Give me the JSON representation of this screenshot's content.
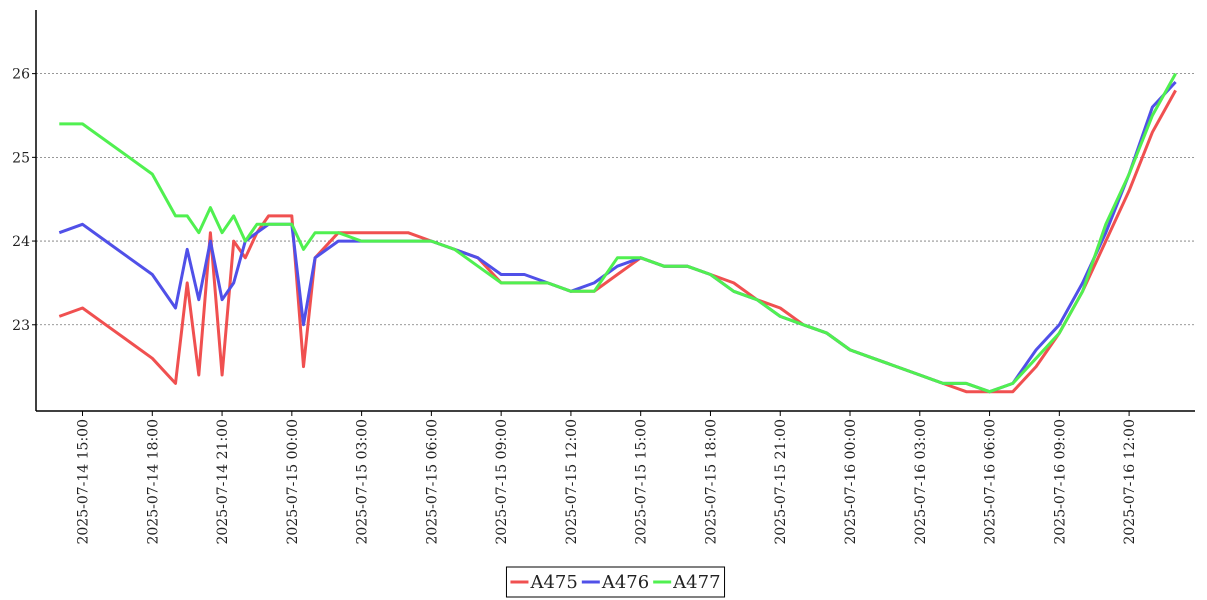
{
  "chart_data": {
    "type": "line",
    "x": [
      "2025-07-14 14:00",
      "2025-07-14 15:00",
      "2025-07-14 16:00",
      "2025-07-14 17:00",
      "2025-07-14 18:00",
      "2025-07-14 19:00",
      "2025-07-14 19:30",
      "2025-07-14 20:00",
      "2025-07-14 20:30",
      "2025-07-14 21:00",
      "2025-07-14 21:30",
      "2025-07-14 22:00",
      "2025-07-14 22:30",
      "2025-07-14 23:00",
      "2025-07-14 23:30",
      "2025-07-15 00:00",
      "2025-07-15 00:30",
      "2025-07-15 01:00",
      "2025-07-15 02:00",
      "2025-07-15 03:00",
      "2025-07-15 04:00",
      "2025-07-15 05:00",
      "2025-07-15 06:00",
      "2025-07-15 07:00",
      "2025-07-15 08:00",
      "2025-07-15 09:00",
      "2025-07-15 10:00",
      "2025-07-15 11:00",
      "2025-07-15 12:00",
      "2025-07-15 13:00",
      "2025-07-15 14:00",
      "2025-07-15 15:00",
      "2025-07-15 16:00",
      "2025-07-15 17:00",
      "2025-07-15 18:00",
      "2025-07-15 19:00",
      "2025-07-15 20:00",
      "2025-07-15 21:00",
      "2025-07-15 22:00",
      "2025-07-15 23:00",
      "2025-07-16 00:00",
      "2025-07-16 01:00",
      "2025-07-16 02:00",
      "2025-07-16 03:00",
      "2025-07-16 04:00",
      "2025-07-16 05:00",
      "2025-07-16 06:00",
      "2025-07-16 07:00",
      "2025-07-16 08:00",
      "2025-07-16 09:00",
      "2025-07-16 10:00",
      "2025-07-16 11:00",
      "2025-07-16 12:00",
      "2025-07-16 13:00",
      "2025-07-16 14:00"
    ],
    "series": [
      {
        "name": "A475",
        "color": "#f05050",
        "values": [
          23.1,
          23.2,
          23.0,
          22.8,
          22.6,
          22.3,
          23.5,
          22.4,
          24.1,
          22.4,
          24.0,
          23.8,
          24.1,
          24.3,
          24.3,
          24.3,
          22.5,
          23.8,
          24.1,
          24.1,
          24.1,
          24.1,
          24.0,
          23.9,
          23.8,
          23.5,
          23.5,
          23.5,
          23.4,
          23.4,
          23.6,
          23.8,
          23.7,
          23.7,
          23.6,
          23.5,
          23.3,
          23.2,
          23.0,
          22.9,
          22.7,
          22.6,
          22.5,
          22.4,
          22.3,
          22.2,
          22.2,
          22.2,
          22.5,
          22.9,
          23.4,
          24.0,
          24.6,
          25.3,
          25.8
        ]
      },
      {
        "name": "A476",
        "color": "#5050e8",
        "values": [
          24.1,
          24.2,
          24.0,
          23.8,
          23.6,
          23.2,
          23.9,
          23.3,
          24.0,
          23.3,
          23.5,
          24.0,
          24.1,
          24.2,
          24.2,
          24.2,
          23.0,
          23.8,
          24.0,
          24.0,
          24.0,
          24.0,
          24.0,
          23.9,
          23.8,
          23.6,
          23.6,
          23.5,
          23.4,
          23.5,
          23.7,
          23.8,
          23.7,
          23.7,
          23.6,
          23.4,
          23.3,
          23.1,
          23.0,
          22.9,
          22.7,
          22.6,
          22.5,
          22.4,
          22.3,
          22.3,
          22.2,
          22.3,
          22.7,
          23.0,
          23.5,
          24.1,
          24.8,
          25.6,
          25.9
        ]
      },
      {
        "name": "A477",
        "color": "#50f050",
        "values": [
          25.4,
          25.4,
          25.2,
          25.0,
          24.8,
          24.3,
          24.3,
          24.1,
          24.4,
          24.1,
          24.3,
          24.0,
          24.2,
          24.2,
          24.2,
          24.2,
          23.9,
          24.1,
          24.1,
          24.0,
          24.0,
          24.0,
          24.0,
          23.9,
          23.7,
          23.5,
          23.5,
          23.5,
          23.4,
          23.4,
          23.8,
          23.8,
          23.7,
          23.7,
          23.6,
          23.4,
          23.3,
          23.1,
          23.0,
          22.9,
          22.7,
          22.6,
          22.5,
          22.4,
          22.3,
          22.3,
          22.2,
          22.3,
          22.6,
          22.9,
          23.4,
          24.2,
          24.8,
          25.5,
          26.0
        ]
      }
    ],
    "xlim": [
      "2025-07-14 13:00",
      "2025-07-16 14:50"
    ],
    "xticks": [
      "2025-07-14 15:00",
      "2025-07-14 18:00",
      "2025-07-14 21:00",
      "2025-07-15 00:00",
      "2025-07-15 03:00",
      "2025-07-15 06:00",
      "2025-07-15 09:00",
      "2025-07-15 12:00",
      "2025-07-15 15:00",
      "2025-07-15 18:00",
      "2025-07-15 21:00",
      "2025-07-16 00:00",
      "2025-07-16 03:00",
      "2025-07-16 06:00",
      "2025-07-16 09:00",
      "2025-07-16 12:00"
    ],
    "ylim": [
      21.97,
      26.76
    ],
    "yticks": [
      23,
      24,
      25,
      26
    ],
    "grid": true,
    "legend": "bottom"
  }
}
